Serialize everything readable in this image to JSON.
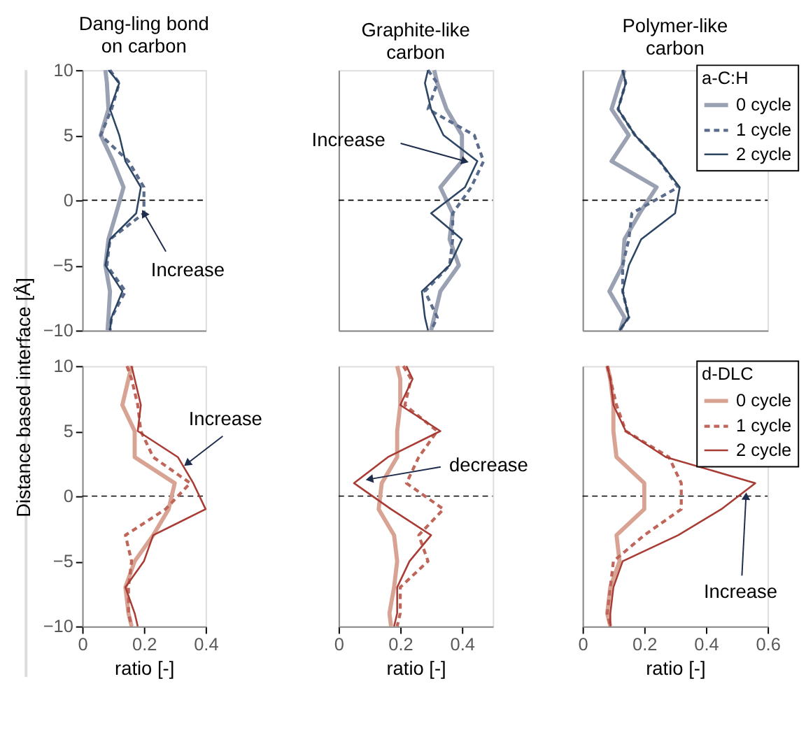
{
  "chart_data": [
    {
      "type": "line",
      "orientation": "horizontal",
      "title": "Dang-ling bond\non carbon",
      "ylabel": "Distance based  interface [Å]",
      "x": [
        10,
        9,
        7,
        5,
        3,
        1,
        -1,
        -3,
        -5,
        -7,
        -9,
        -10
      ],
      "xlim": [
        0,
        0.4
      ],
      "ylim": [
        -10,
        10
      ],
      "yticks": [
        -10,
        -5,
        0,
        5,
        10
      ],
      "tick_labels": "y",
      "grid": false,
      "series": [
        {
          "color": "#9aa1b3",
          "line_style": "solid",
          "values": [
            0.075,
            0.08,
            0.085,
            0.06,
            0.1,
            0.134,
            0.11,
            0.085,
            0.075,
            0.09,
            0.085,
            0.082
          ]
        },
        {
          "color": "#5a6b8c",
          "line_style": "dashed",
          "values": [
            0.09,
            0.12,
            0.095,
            0.06,
            0.15,
            0.2,
            0.2,
            0.09,
            0.08,
            0.14,
            0.095,
            0.09
          ]
        },
        {
          "color": "#2b4563",
          "line_style": "solid",
          "values": [
            0.085,
            0.12,
            0.09,
            0.12,
            0.14,
            0.19,
            0.175,
            0.09,
            0.075,
            0.13,
            0.095,
            0.09
          ]
        }
      ],
      "ref_lines": [
        {
          "axis": "y",
          "value": 0,
          "color": "#000000",
          "line_style": "dashed"
        }
      ],
      "annotations": [
        {
          "text": "Increase",
          "x": 0.2,
          "y": -1
        }
      ]
    },
    {
      "type": "line",
      "orientation": "horizontal",
      "title": "Graphite-like\ncarbon",
      "x": [
        10,
        9,
        7,
        5,
        3,
        1,
        -1,
        -3,
        -5,
        -7,
        -9,
        -10
      ],
      "xlim": [
        0,
        0.5
      ],
      "ylim": [
        -10,
        10
      ],
      "tick_labels": false,
      "grid": false,
      "series": [
        {
          "color": "#9aa1b3",
          "line_style": "solid",
          "values": [
            0.31,
            0.32,
            0.35,
            0.4,
            0.4,
            0.33,
            0.37,
            0.36,
            0.39,
            0.33,
            0.31,
            0.3
          ]
        },
        {
          "color": "#5a6b8c",
          "line_style": "dashed",
          "values": [
            0.29,
            0.32,
            0.29,
            0.44,
            0.47,
            0.43,
            0.37,
            0.37,
            0.36,
            0.28,
            0.32,
            0.3
          ]
        },
        {
          "color": "#2b4563",
          "line_style": "solid",
          "values": [
            0.29,
            0.28,
            0.3,
            0.34,
            0.45,
            0.41,
            0.3,
            0.4,
            0.36,
            0.27,
            0.28,
            0.29
          ]
        }
      ],
      "ref_lines": [
        {
          "axis": "y",
          "value": 0,
          "color": "#000000",
          "line_style": "dashed"
        }
      ],
      "annotations": [
        {
          "text": "Increase",
          "x": 0.41,
          "y": 3
        }
      ]
    },
    {
      "type": "line",
      "orientation": "horizontal",
      "title": "Polymer-like\ncarbon",
      "x": [
        10,
        9,
        7,
        5,
        3,
        1,
        -1,
        -3,
        -5,
        -7,
        -9,
        -10
      ],
      "xlim": [
        0,
        0.6
      ],
      "ylim": [
        -10,
        10
      ],
      "tick_labels": false,
      "grid": false,
      "legend": "top right",
      "legend_title": "a-C:H",
      "series": [
        {
          "name": "0 cycle",
          "color": "#9aa1b3",
          "line_style": "solid",
          "values": [
            0.136,
            0.12,
            0.094,
            0.15,
            0.094,
            0.24,
            0.185,
            0.136,
            0.13,
            0.087,
            0.136,
            0.122
          ]
        },
        {
          "name": "1 cycle",
          "color": "#5a6b8c",
          "line_style": "dashed",
          "values": [
            0.13,
            0.14,
            0.115,
            0.17,
            0.25,
            0.31,
            0.16,
            0.15,
            0.13,
            0.13,
            0.15,
            0.12
          ]
        },
        {
          "name": "2 cycle",
          "color": "#2b4563",
          "line_style": "solid",
          "values": [
            0.13,
            0.14,
            0.115,
            0.17,
            0.25,
            0.315,
            0.3,
            0.19,
            0.15,
            0.13,
            0.15,
            0.12
          ]
        }
      ],
      "ref_lines": [
        {
          "axis": "y",
          "value": 0,
          "color": "#000000",
          "line_style": "dashed"
        }
      ]
    },
    {
      "type": "line",
      "orientation": "horizontal",
      "xlabel": "ratio [-]",
      "x": [
        10,
        9,
        7,
        5,
        3,
        1,
        -1,
        -3,
        -5,
        -7,
        -9,
        -10
      ],
      "xlim": [
        0,
        0.4
      ],
      "xticks": [
        0,
        0.2,
        0.4
      ],
      "ylim": [
        -10,
        10
      ],
      "yticks": [
        -10,
        -5,
        0,
        5,
        10
      ],
      "grid": false,
      "series": [
        {
          "color": "#d9a394",
          "line_style": "solid",
          "values": [
            0.16,
            0.15,
            0.13,
            0.17,
            0.17,
            0.3,
            0.28,
            0.23,
            0.17,
            0.14,
            0.15,
            0.16
          ]
        },
        {
          "color": "#c0655a",
          "line_style": "dashed",
          "values": [
            0.145,
            0.16,
            0.18,
            0.19,
            0.23,
            0.35,
            0.27,
            0.14,
            0.16,
            0.15,
            0.15,
            0.16
          ]
        },
        {
          "color": "#a83c35",
          "line_style": "solid",
          "values": [
            0.16,
            0.17,
            0.19,
            0.18,
            0.31,
            0.36,
            0.4,
            0.23,
            0.2,
            0.14,
            0.17,
            0.18
          ]
        }
      ],
      "ref_lines": [
        {
          "axis": "y",
          "value": 0,
          "color": "#000000",
          "line_style": "dashed"
        }
      ],
      "annotations": [
        {
          "text": "Increase",
          "x": 0.34,
          "y": 2.5
        }
      ]
    },
    {
      "type": "line",
      "orientation": "horizontal",
      "xlabel": "ratio [-]",
      "x": [
        10,
        9,
        7,
        5,
        3,
        1,
        -1,
        -3,
        -5,
        -7,
        -9,
        -10
      ],
      "xlim": [
        0,
        0.5
      ],
      "xticks": [
        0,
        0.2,
        0.4
      ],
      "ylim": [
        -10,
        10
      ],
      "tick_labels": "x",
      "grid": false,
      "series": [
        {
          "color": "#d9a394",
          "line_style": "solid",
          "values": [
            0.19,
            0.2,
            0.2,
            0.19,
            0.19,
            0.14,
            0.13,
            0.18,
            0.19,
            0.18,
            0.165,
            0.17
          ]
        },
        {
          "color": "#c0655a",
          "line_style": "dashed",
          "values": [
            0.21,
            0.235,
            0.215,
            0.32,
            0.26,
            0.22,
            0.34,
            0.26,
            0.29,
            0.2,
            0.2,
            0.19
          ]
        },
        {
          "color": "#a83c35",
          "line_style": "solid",
          "values": [
            0.22,
            0.24,
            0.2,
            0.33,
            0.16,
            0.05,
            0.17,
            0.3,
            0.23,
            0.19,
            0.19,
            0.18
          ]
        }
      ],
      "ref_lines": [
        {
          "axis": "y",
          "value": 0,
          "color": "#000000",
          "line_style": "dashed"
        }
      ],
      "annotations": [
        {
          "text": "decrease",
          "x": 0.1,
          "y": 1.3
        }
      ]
    },
    {
      "type": "line",
      "orientation": "horizontal",
      "xlabel": "ratio [-]",
      "x": [
        10,
        9,
        7,
        5,
        3,
        1,
        -1,
        -3,
        -5,
        -7,
        -9,
        -10
      ],
      "xlim": [
        0,
        0.6
      ],
      "xticks": [
        0,
        0.2,
        0.4,
        0.6
      ],
      "ylim": [
        -10,
        10
      ],
      "tick_labels": "x",
      "grid": false,
      "legend": "top right",
      "legend_title": "d-DLC",
      "series": [
        {
          "name": "0 cycle",
          "color": "#d9a394",
          "line_style": "solid",
          "values": [
            0.08,
            0.09,
            0.1,
            0.1,
            0.11,
            0.2,
            0.2,
            0.11,
            0.12,
            0.09,
            0.08,
            0.09
          ]
        },
        {
          "name": "1 cycle",
          "color": "#c0655a",
          "line_style": "dashed",
          "values": [
            0.08,
            0.09,
            0.11,
            0.14,
            0.28,
            0.32,
            0.32,
            0.2,
            0.1,
            0.09,
            0.08,
            0.09
          ]
        },
        {
          "name": "2 cycle",
          "color": "#a83c35",
          "line_style": "solid",
          "values": [
            0.08,
            0.09,
            0.1,
            0.14,
            0.27,
            0.56,
            0.45,
            0.31,
            0.13,
            0.1,
            0.09,
            0.09
          ]
        }
      ],
      "ref_lines": [
        {
          "axis": "y",
          "value": 0,
          "color": "#000000",
          "line_style": "dashed"
        }
      ],
      "annotations": [
        {
          "text": "Increase",
          "x": 0.53,
          "y": 0
        }
      ]
    }
  ]
}
